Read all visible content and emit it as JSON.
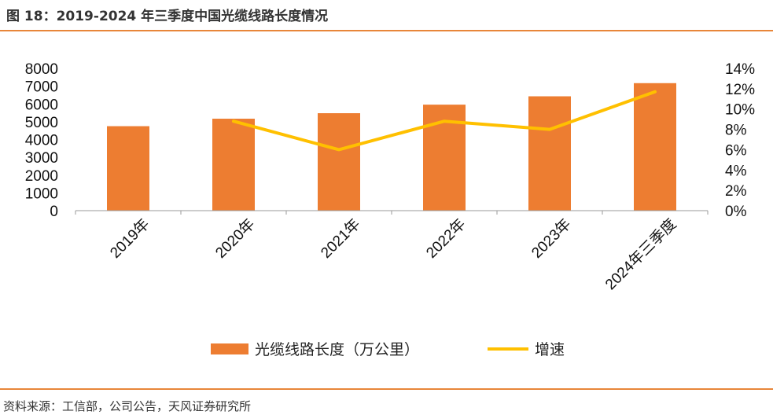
{
  "figure": {
    "title": "图 18：2019-2024 年三季度中国光缆线路长度情况",
    "source": "资料来源：工信部，公司公告，天风证券研究所"
  },
  "colors": {
    "accent": "#e8863a",
    "bar": "#ed7d31",
    "line": "#ffc000"
  },
  "chart_data": {
    "type": "bar",
    "categories": [
      "2019年",
      "2020年",
      "2021年",
      "2022年",
      "2023年",
      "2024年三季度"
    ],
    "series": [
      {
        "name": "光缆线路长度（万公里）",
        "type": "bar",
        "axis": "left",
        "values": [
          4750,
          5170,
          5480,
          5960,
          6430,
          7170
        ]
      },
      {
        "name": "增速",
        "type": "line",
        "axis": "right",
        "values": [
          null,
          8.8,
          6.0,
          8.8,
          8.0,
          11.7
        ]
      }
    ],
    "y_left": {
      "lim": [
        0,
        8000
      ],
      "ticks": [
        "0",
        "1000",
        "2000",
        "3000",
        "4000",
        "5000",
        "6000",
        "7000",
        "8000"
      ]
    },
    "y_right": {
      "lim": [
        0,
        14
      ],
      "ticks": [
        "0%",
        "2%",
        "4%",
        "6%",
        "8%",
        "10%",
        "12%",
        "14%"
      ]
    },
    "grid": false,
    "legend_position": "bottom"
  }
}
